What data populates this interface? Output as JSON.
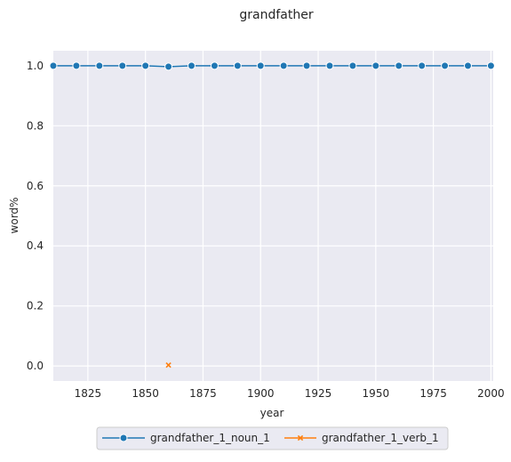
{
  "chart_data": {
    "type": "line",
    "title": "grandfather",
    "xlabel": "year",
    "ylabel": "word%",
    "xlim": [
      1810,
      2001
    ],
    "ylim": [
      -0.05,
      1.05
    ],
    "x_ticks": [
      1825,
      1850,
      1875,
      1900,
      1925,
      1950,
      1975,
      2000
    ],
    "x_tick_labels": [
      "1825",
      "1850",
      "1875",
      "1900",
      "1925",
      "1950",
      "1975",
      "2000"
    ],
    "y_ticks": [
      0.0,
      0.2,
      0.4,
      0.6,
      0.8,
      1.0
    ],
    "y_tick_labels": [
      "0.0",
      "0.2",
      "0.4",
      "0.6",
      "0.8",
      "1.0"
    ],
    "grid": true,
    "background": "#eaeaf2",
    "legend_position": "bottom-center",
    "series": [
      {
        "name": "grandfather_1_noun_1",
        "color": "#1f77b4",
        "marker": "circle",
        "x": [
          1810,
          1820,
          1830,
          1840,
          1850,
          1860,
          1870,
          1880,
          1890,
          1900,
          1910,
          1920,
          1930,
          1940,
          1950,
          1960,
          1970,
          1980,
          1990,
          2000
        ],
        "y": [
          1.0,
          1.0,
          1.0,
          1.0,
          1.0,
          0.997,
          1.0,
          1.0,
          1.0,
          1.0,
          1.0,
          1.0,
          1.0,
          1.0,
          1.0,
          1.0,
          1.0,
          1.0,
          1.0,
          1.0
        ]
      },
      {
        "name": "grandfather_1_verb_1",
        "color": "#ff7f0e",
        "marker": "x",
        "x": [
          1860
        ],
        "y": [
          0.003
        ]
      }
    ]
  }
}
